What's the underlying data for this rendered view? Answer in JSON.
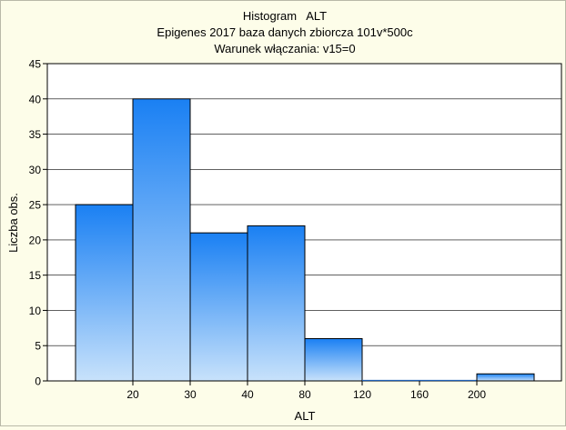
{
  "chart_data": {
    "type": "bar",
    "title": "Histogram   ALT",
    "subtitle": "Epigenes 2017 baza danych zbiorcza 101v*500c",
    "subtitle2": "Warunek włączania: v15=0",
    "xlabel": "ALT",
    "ylabel": "Liczba obs.",
    "ylim": [
      0,
      45
    ],
    "yticks": [
      0,
      5,
      10,
      15,
      20,
      25,
      30,
      35,
      40,
      45
    ],
    "xtick_labels": [
      "20",
      "30",
      "40",
      "80",
      "120",
      "160",
      "200"
    ],
    "categories": [
      "< 20",
      "20-30",
      "30-40",
      "40-80",
      "80-120",
      "120-160",
      "160-200",
      "> 200"
    ],
    "values": [
      25,
      40,
      21,
      22,
      6,
      0,
      0,
      1
    ],
    "grid": true,
    "colors": {
      "bar_top": "#1a80f3",
      "bar_bottom": "#c8e2fb",
      "bar_edge": "#1f5fb3",
      "background": "#fdfde9",
      "plot_bg": "#ffffff"
    }
  }
}
